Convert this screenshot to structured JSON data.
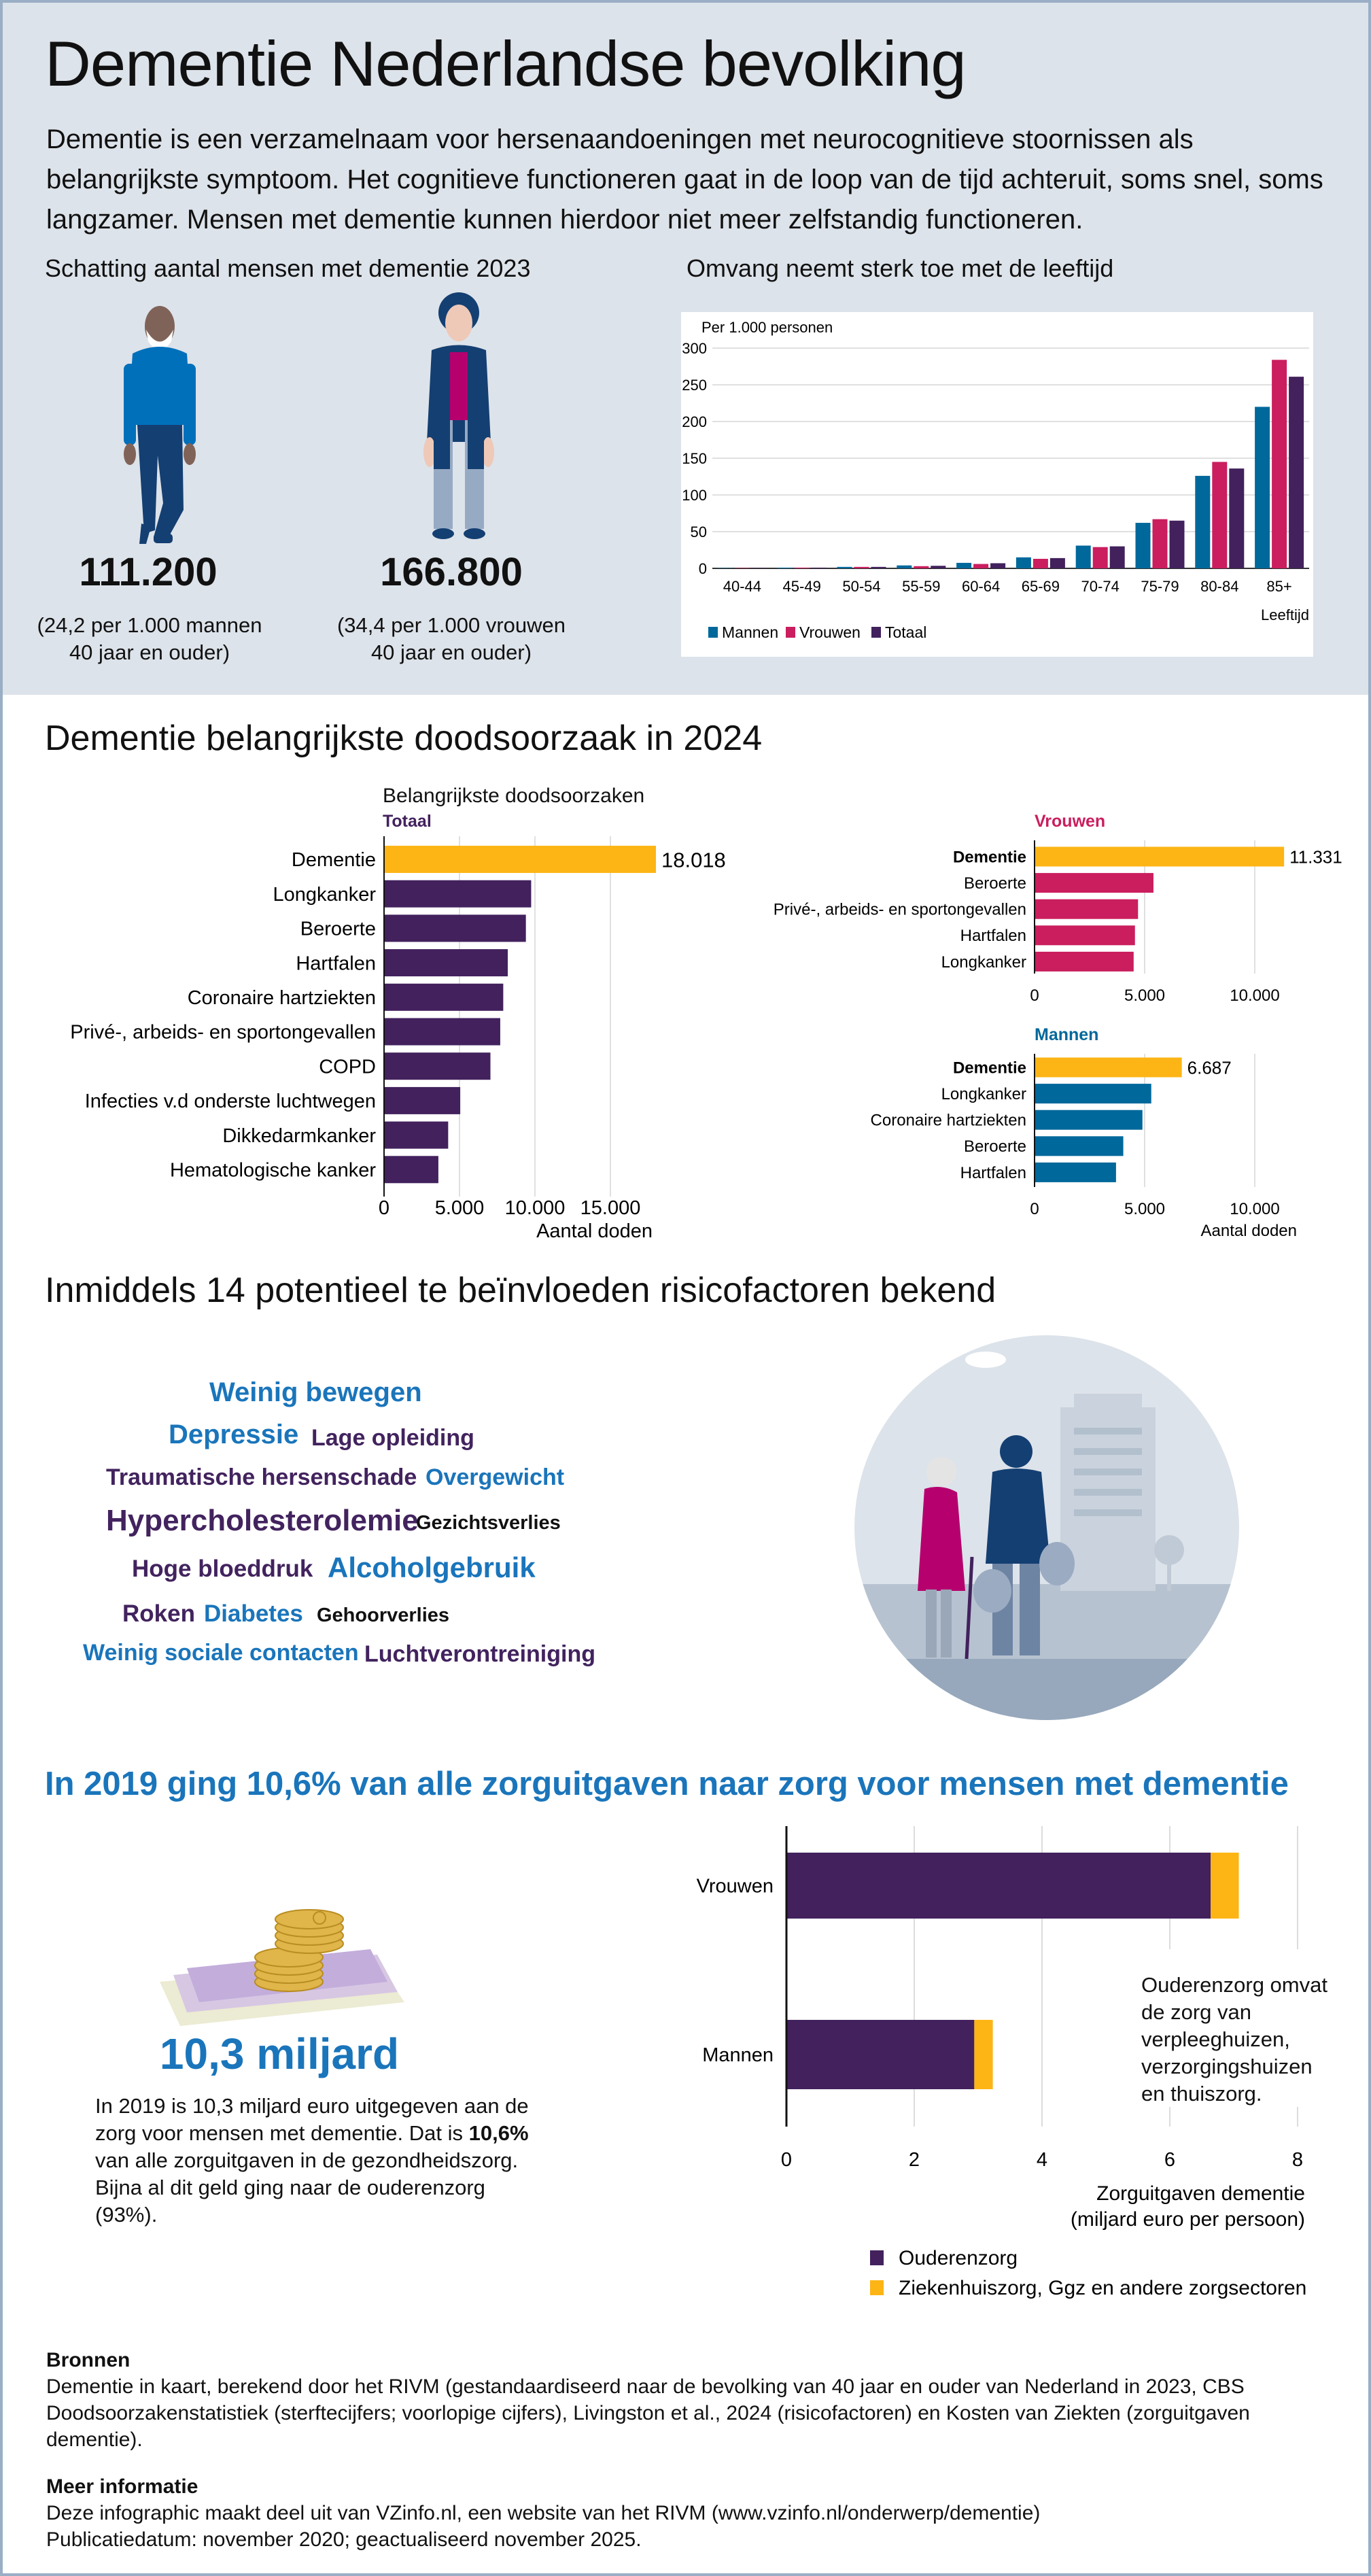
{
  "title": "Dementie Nederlandse bevolking",
  "intro": "Dementie is een verzamelnaam voor hersenaandoeningen met neurocognitieve stoornissen als belangrijkste symptoom. Het cognitieve functioneren gaat in de loop van de tijd achteruit, soms snel, soms langzamer. Mensen met dementie kunnen hierdoor niet meer zelfstandig functioneren.",
  "colors": {
    "mannen": "#01689b",
    "vrouwen": "#ca1e5e",
    "totaal": "#42215d",
    "dementie": "#fdb515",
    "accent_blue": "#1a75bb",
    "top_bg": "#dde3ea"
  },
  "estimate": {
    "heading": "Schatting aantal mensen met dementie 2023",
    "men": {
      "count": "111.200",
      "note_line1": "(24,2 per 1.000 mannen",
      "note_line2": "40 jaar en ouder)"
    },
    "women": {
      "count": "166.800",
      "note_line1": "(34,4 per 1.000 vrouwen",
      "note_line2": "40 jaar en ouder)"
    }
  },
  "age_section": {
    "heading": "Omvang neemt sterk toe met de leeftijd"
  },
  "causes_section": {
    "heading": "Dementie belangrijkste doodsoorzaak in 2024",
    "chart_title": "Belangrijkste doodsoorzaken"
  },
  "risk_section": {
    "heading": "Inmiddels 14 potentieel te beïnvloeden risicofactoren bekend",
    "words": [
      "Weinig bewegen",
      "Depressie",
      "Lage opleiding",
      "Traumatische hersenschade",
      "Overgewicht",
      "Hypercholesterolemie",
      "Gezichtsverlies",
      "Hoge bloeddruk",
      "Alcoholgebruik",
      "Roken",
      "Diabetes",
      "Gehoorverlies",
      "Weinig sociale contacten",
      "Luchtverontreiniging"
    ]
  },
  "cost_section": {
    "heading": "In 2019 ging 10,6% van alle zorguitgaven naar zorg voor mensen met dementie",
    "amount": "10,3 miljard",
    "text_pre": "In 2019 is 10,3 miljard euro uitgegeven aan de zorg voor mensen met dementie. Dat is ",
    "text_bold": "10,6%",
    "text_post": " van alle zorguitgaven in de gezondheidszorg. Bijna al dit geld ging naar de ouderenzorg (93%).",
    "annotation": "Ouderenzorg omvat de zorg van verpleeghuizen, verzorgingshuizen en thuiszorg."
  },
  "footer": {
    "sources_title": "Bronnen",
    "sources_text": "Dementie in kaart, berekend door het RIVM (gestandaardiseerd naar de bevolking van 40 jaar en ouder van Nederland in 2023, CBS Doodsoorzakenstatistiek (sterftecijfers; voorlopige cijfers), Livingston et al., 2024 (risicofactoren) en Kosten van Ziekten (zorguitgaven dementie).",
    "more_title": "Meer informatie",
    "more_line1": "Deze infographic maakt deel uit van VZinfo.nl, een website van het RIVM (www.vzinfo.nl/onderwerp/dementie)",
    "more_line2": "Publicatiedatum: november 2020; geactualiseerd november 2025."
  },
  "chart_data": [
    {
      "type": "bar",
      "ylabel": "Per 1.000 personen",
      "xlabel": "Leeftijd",
      "categories": [
        "40-44",
        "45-49",
        "50-54",
        "55-59",
        "60-64",
        "65-69",
        "70-74",
        "75-79",
        "80-84",
        "85+"
      ],
      "ylim": [
        0,
        300
      ],
      "yticks": [
        0,
        50,
        100,
        150,
        200,
        250,
        300
      ],
      "grid": true,
      "legend": "bottom-left",
      "series": [
        {
          "name": "Mannen",
          "color": "#01689b",
          "values": [
            0.5,
            1,
            2,
            4,
            7.5,
            15,
            31,
            62,
            126,
            220
          ]
        },
        {
          "name": "Vrouwen",
          "color": "#ca1e5e",
          "values": [
            0.5,
            1,
            2,
            3,
            6,
            13,
            29,
            67,
            145,
            284
          ]
        },
        {
          "name": "Totaal",
          "color": "#42215d",
          "values": [
            0.5,
            1,
            2,
            3.5,
            7,
            14,
            30,
            65,
            136,
            261
          ]
        }
      ]
    },
    {
      "type": "bar",
      "orientation": "horizontal",
      "title": "Totaal",
      "xlabel": "Aantal doden",
      "xlim": [
        0,
        18018
      ],
      "xticks": [
        0,
        5000,
        10000,
        15000
      ],
      "xtick_labels": [
        "0",
        "5.000",
        "10.000",
        "15.000"
      ],
      "categories": [
        "Dementie",
        "Longkanker",
        "Beroerte",
        "Hartfalen",
        "Coronaire hartziekten",
        "Privé-, arbeids- en sportongevallen",
        "COPD",
        "Infecties v.d onderste luchtwegen",
        "Dikkedarmkanker",
        "Hematologische kanker"
      ],
      "values": [
        18018,
        9750,
        9400,
        8200,
        7900,
        7700,
        7050,
        5050,
        4250,
        3600
      ],
      "value_labels": [
        "18.018"
      ],
      "color": "#42215d",
      "highlight_color": "#fdb515"
    },
    {
      "type": "bar",
      "orientation": "horizontal",
      "title": "Vrouwen",
      "xticks": [
        0,
        5000,
        10000
      ],
      "xtick_labels": [
        "0",
        "5.000",
        "10.000"
      ],
      "categories": [
        "Dementie",
        "Beroerte",
        "Privé-, arbeids- en sportongevallen",
        "Hartfalen",
        "Longkanker"
      ],
      "values": [
        11331,
        5400,
        4700,
        4560,
        4500
      ],
      "value_labels": [
        "11.331"
      ],
      "color": "#ca1e5e",
      "highlight_color": "#fdb515"
    },
    {
      "type": "bar",
      "orientation": "horizontal",
      "title": "Mannen",
      "xlabel": "Aantal doden",
      "xticks": [
        0,
        5000,
        10000
      ],
      "xtick_labels": [
        "0",
        "5.000",
        "10.000"
      ],
      "categories": [
        "Dementie",
        "Longkanker",
        "Coronaire hartziekten",
        "Beroerte",
        "Hartfalen"
      ],
      "values": [
        6687,
        5300,
        4900,
        4030,
        3700
      ],
      "value_labels": [
        "6.687"
      ],
      "color": "#01689b",
      "highlight_color": "#fdb515"
    },
    {
      "type": "bar",
      "orientation": "horizontal",
      "stacked": true,
      "xlabel_line1": "Zorguitgaven dementie",
      "xlabel_line2": "(miljard euro per persoon)",
      "xlim": [
        0,
        8
      ],
      "xticks": [
        0,
        2,
        4,
        6,
        8
      ],
      "categories": [
        "Vrouwen",
        "Mannen"
      ],
      "legend": "bottom",
      "series": [
        {
          "name": "Ouderenzorg",
          "color": "#42215d",
          "values": [
            6.64,
            2.94
          ]
        },
        {
          "name": "Ziekenhuiszorg, Ggz en andere zorgsectoren",
          "color": "#fdb515",
          "values": [
            0.44,
            0.29
          ]
        }
      ]
    }
  ]
}
